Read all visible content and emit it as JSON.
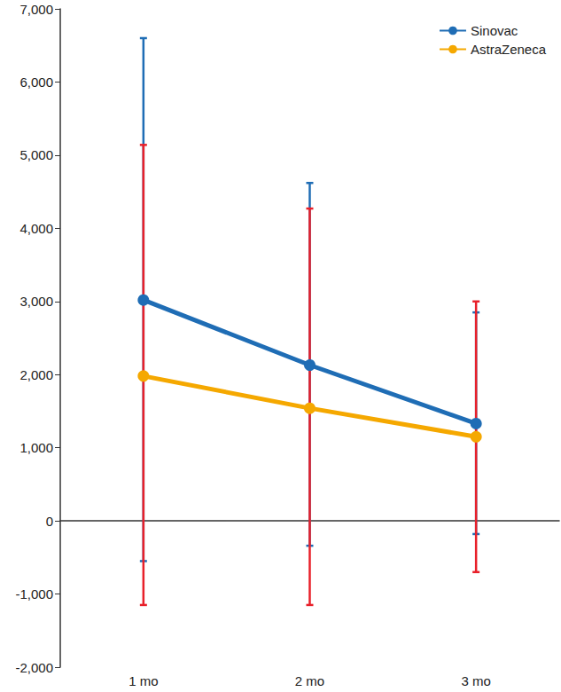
{
  "chart_data": {
    "type": "line",
    "categories": [
      "1 mo",
      "2 mo",
      "3 mo"
    ],
    "series": [
      {
        "name": "Sinovac",
        "color": "#1f6db5",
        "marker": "circle",
        "values": [
          3020,
          2130,
          1330
        ],
        "error_bars": [
          [
            -550,
            6600
          ],
          [
            -340,
            4620
          ],
          [
            -180,
            2850
          ]
        ]
      },
      {
        "name": "AstraZeneca",
        "color": "#f5a800",
        "marker": "circle",
        "values": [
          1980,
          1540,
          1150
        ],
        "error_bars": [
          [
            -1150,
            5140
          ],
          [
            -1150,
            4270
          ],
          [
            -700,
            3000
          ]
        ]
      }
    ],
    "ylim": [
      -2000,
      7000
    ],
    "yticks": [
      {
        "value": -2000,
        "label": "-2,000"
      },
      {
        "value": -1000,
        "label": "-1,000"
      },
      0,
      {
        "value": 1000,
        "label": "1,000"
      },
      {
        "value": 2000,
        "label": "2,000"
      },
      {
        "value": 3000,
        "label": "3,000"
      },
      {
        "value": 4000,
        "label": "4,000"
      },
      {
        "value": 5000,
        "label": "5,000"
      },
      {
        "value": 6000,
        "label": "6,000"
      },
      {
        "value": 7000,
        "label": "7,000"
      }
    ],
    "grid": false,
    "legend": "upper right"
  }
}
